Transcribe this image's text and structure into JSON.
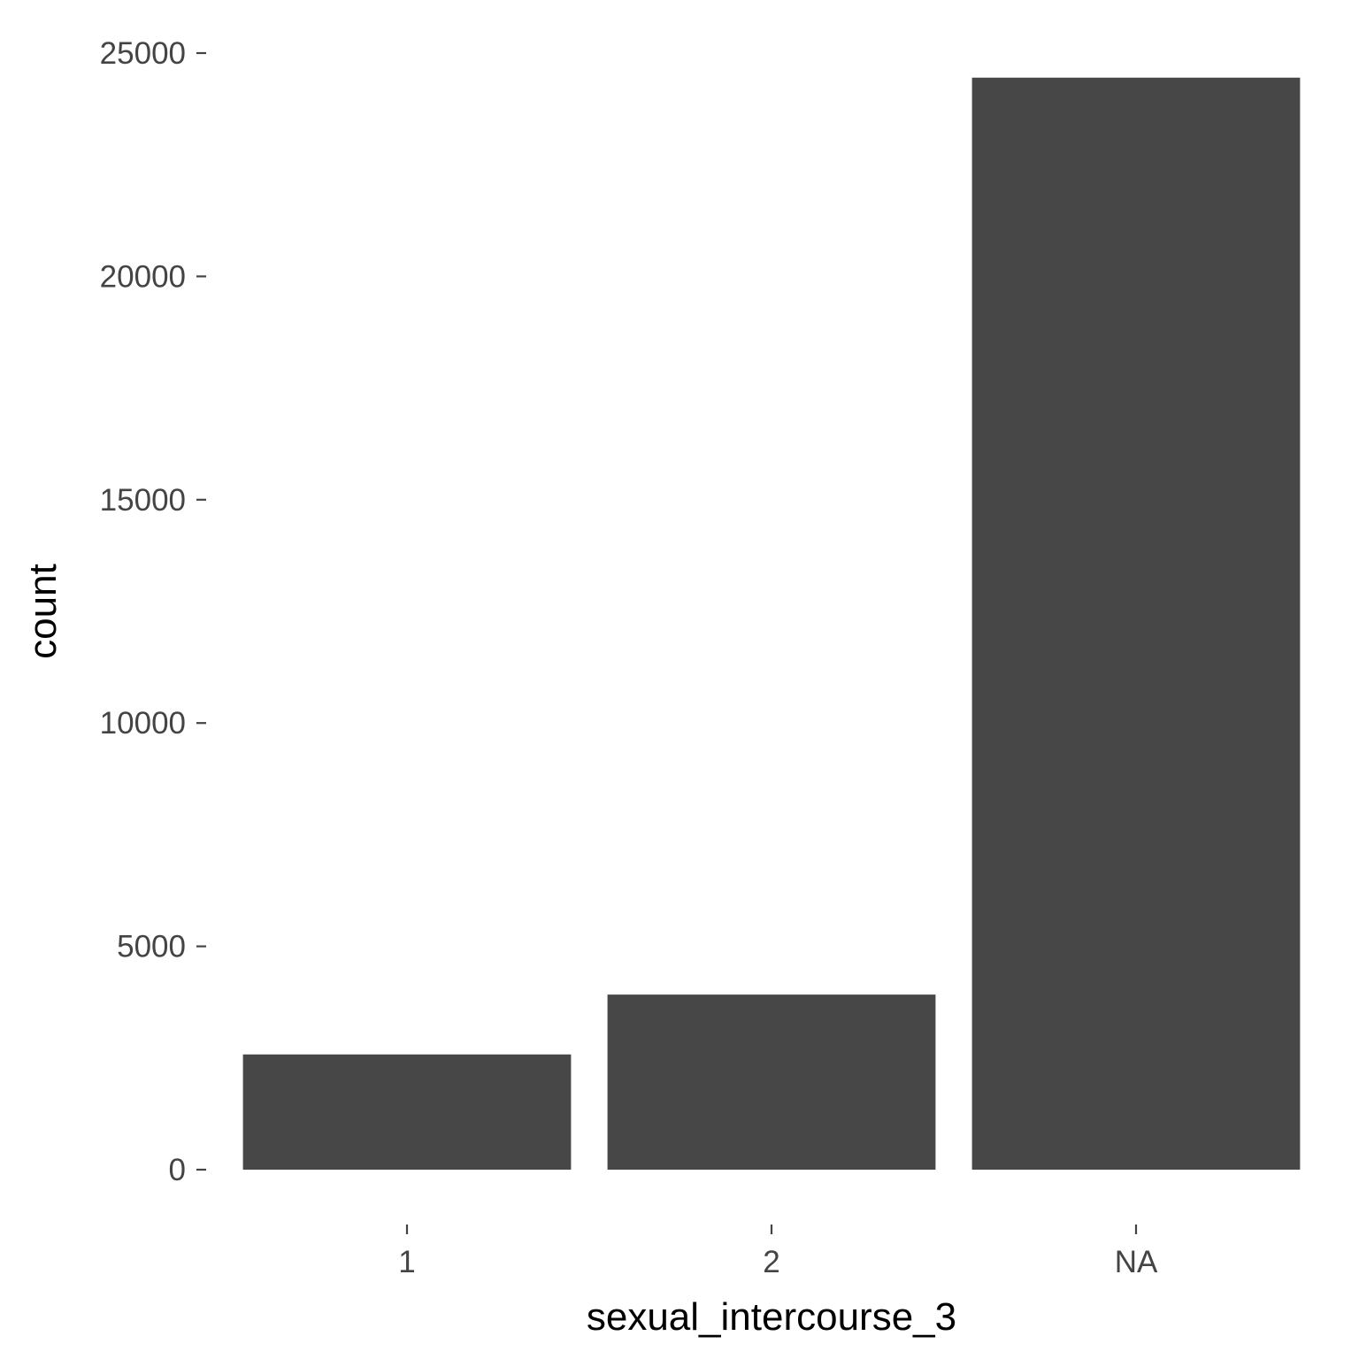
{
  "chart_data": {
    "type": "bar",
    "categories": [
      "1",
      "2",
      "NA"
    ],
    "values": [
      2580,
      3920,
      24450
    ],
    "xlabel": "sexual_intercourse_3",
    "ylabel": "count",
    "ylim": [
      0,
      25000
    ],
    "yticks": [
      0,
      5000,
      10000,
      15000,
      20000,
      25000
    ],
    "ytick_labels": [
      "0",
      "5000",
      "10000",
      "15000",
      "20000",
      "25000"
    ],
    "grid": false,
    "bar_color": "#474747"
  }
}
